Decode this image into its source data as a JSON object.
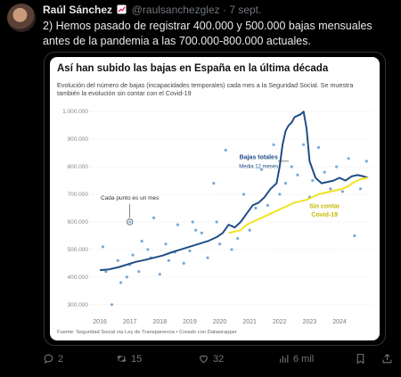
{
  "author": {
    "name": "Raúl Sánchez",
    "handle": "@raulsanchezglez",
    "separator": "·",
    "date": "7 sept."
  },
  "tweet_text": "2) Hemos pasado de registrar 400.000 y 500.000 bajas mensuales antes de la pandemia a las 700.000-800.000 actuales.",
  "actions": {
    "replies": "2",
    "retweets": "15",
    "likes": "32",
    "views": "6 mil"
  },
  "colors": {
    "total": "#1f4e87",
    "covid": "#f1e31f",
    "dots": "#7aaad6",
    "grid": "#e3e3e3"
  },
  "icons": [
    "reply-icon",
    "retweet-icon",
    "like-icon",
    "views-icon",
    "bookmark-icon",
    "share-icon",
    "chart-emoji-icon"
  ],
  "chart_data": {
    "type": "line",
    "title": "Así han subido las bajas en España en la última década",
    "subtitle": "Evolución del número de bajas (incapacidades temporales) cada mes a la Seguridad Social. Se muestra también la evolución sin contar con el Covid-19",
    "source": "Fuente: Seguridad Social vía Ley de Transparencia • Creado con Datawrapper",
    "xlim": [
      2015.7,
      2025.1
    ],
    "ylim": [
      280000,
      1020000
    ],
    "x_ticks": [
      "2016",
      "2017",
      "2018",
      "2019",
      "2020",
      "2021",
      "2022",
      "2023",
      "2024"
    ],
    "x_tick_values": [
      2016,
      2017,
      2018,
      2019,
      2020,
      2021,
      2022,
      2023,
      2024
    ],
    "y_ticks": [
      "300.000",
      "400.000",
      "500.000",
      "600.000",
      "700.000",
      "800.000",
      "900.000",
      "1.000.000"
    ],
    "y_tick_values": [
      300000,
      400000,
      500000,
      600000,
      700000,
      800000,
      900000,
      1000000
    ],
    "series": [
      {
        "name": "Bajas totales",
        "label": "Bajas totales",
        "label2": "Media 12 meses",
        "x": [
          2016.0,
          2016.3,
          2016.6,
          2016.9,
          2017.2,
          2017.5,
          2017.8,
          2018.1,
          2018.4,
          2018.7,
          2019.0,
          2019.3,
          2019.6,
          2019.9,
          2020.1,
          2020.3,
          2020.5,
          2020.7,
          2020.9,
          2021.1,
          2021.3,
          2021.5,
          2021.7,
          2021.9,
          2022.0,
          2022.1,
          2022.2,
          2022.3,
          2022.4,
          2022.5,
          2022.6,
          2022.7,
          2022.8,
          2022.9,
          2023.0,
          2023.2,
          2023.4,
          2023.6,
          2023.8,
          2024.0,
          2024.2,
          2024.4,
          2024.6,
          2024.8,
          2024.95
        ],
        "y": [
          425000,
          428000,
          435000,
          445000,
          455000,
          462000,
          470000,
          478000,
          490000,
          500000,
          510000,
          520000,
          530000,
          545000,
          560000,
          590000,
          580000,
          600000,
          630000,
          660000,
          670000,
          690000,
          720000,
          740000,
          800000,
          880000,
          930000,
          950000,
          960000,
          980000,
          985000,
          990000,
          1000000,
          940000,
          820000,
          760000,
          740000,
          745000,
          750000,
          760000,
          750000,
          765000,
          770000,
          765000,
          760000
        ]
      },
      {
        "name": "Sin contar Covid-19",
        "label": "Sin contar",
        "label2": "Covid-19",
        "x": [
          2020.3,
          2020.5,
          2020.7,
          2020.9,
          2021.1,
          2021.3,
          2021.5,
          2021.7,
          2021.9,
          2022.1,
          2022.3,
          2022.5,
          2022.7,
          2022.9,
          2023.1,
          2023.3,
          2023.5,
          2023.7,
          2023.9,
          2024.1,
          2024.3,
          2024.5,
          2024.7,
          2024.95
        ],
        "y": [
          560000,
          565000,
          570000,
          590000,
          600000,
          610000,
          620000,
          630000,
          640000,
          650000,
          660000,
          670000,
          675000,
          680000,
          690000,
          700000,
          705000,
          710000,
          715000,
          720000,
          730000,
          745000,
          755000,
          760000
        ]
      }
    ],
    "scatter": {
      "x": [
        2016.1,
        2016.2,
        2016.4,
        2016.6,
        2016.7,
        2016.9,
        2017.0,
        2017.1,
        2017.3,
        2017.4,
        2017.6,
        2017.7,
        2017.8,
        2018.0,
        2018.2,
        2018.3,
        2018.5,
        2018.6,
        2018.8,
        2019.0,
        2019.1,
        2019.2,
        2019.4,
        2019.6,
        2019.8,
        2019.9,
        2020.0,
        2020.2,
        2020.4,
        2020.6,
        2020.8,
        2021.0,
        2021.2,
        2021.4,
        2021.6,
        2021.8,
        2022.0,
        2022.2,
        2022.4,
        2022.6,
        2022.8,
        2023.0,
        2023.1,
        2023.3,
        2023.5,
        2023.7,
        2023.9,
        2024.1,
        2024.3,
        2024.5,
        2024.7,
        2024.9
      ],
      "y": [
        510000,
        420000,
        300000,
        460000,
        380000,
        400000,
        445000,
        480000,
        420000,
        530000,
        500000,
        470000,
        615000,
        410000,
        520000,
        460000,
        490000,
        590000,
        450000,
        495000,
        600000,
        570000,
        560000,
        470000,
        740000,
        600000,
        520000,
        860000,
        500000,
        540000,
        700000,
        570000,
        650000,
        790000,
        660000,
        880000,
        700000,
        740000,
        800000,
        770000,
        880000,
        690000,
        750000,
        870000,
        780000,
        720000,
        800000,
        710000,
        830000,
        550000,
        720000,
        820000
      ]
    },
    "annotation": "Cada punto es un mes"
  }
}
